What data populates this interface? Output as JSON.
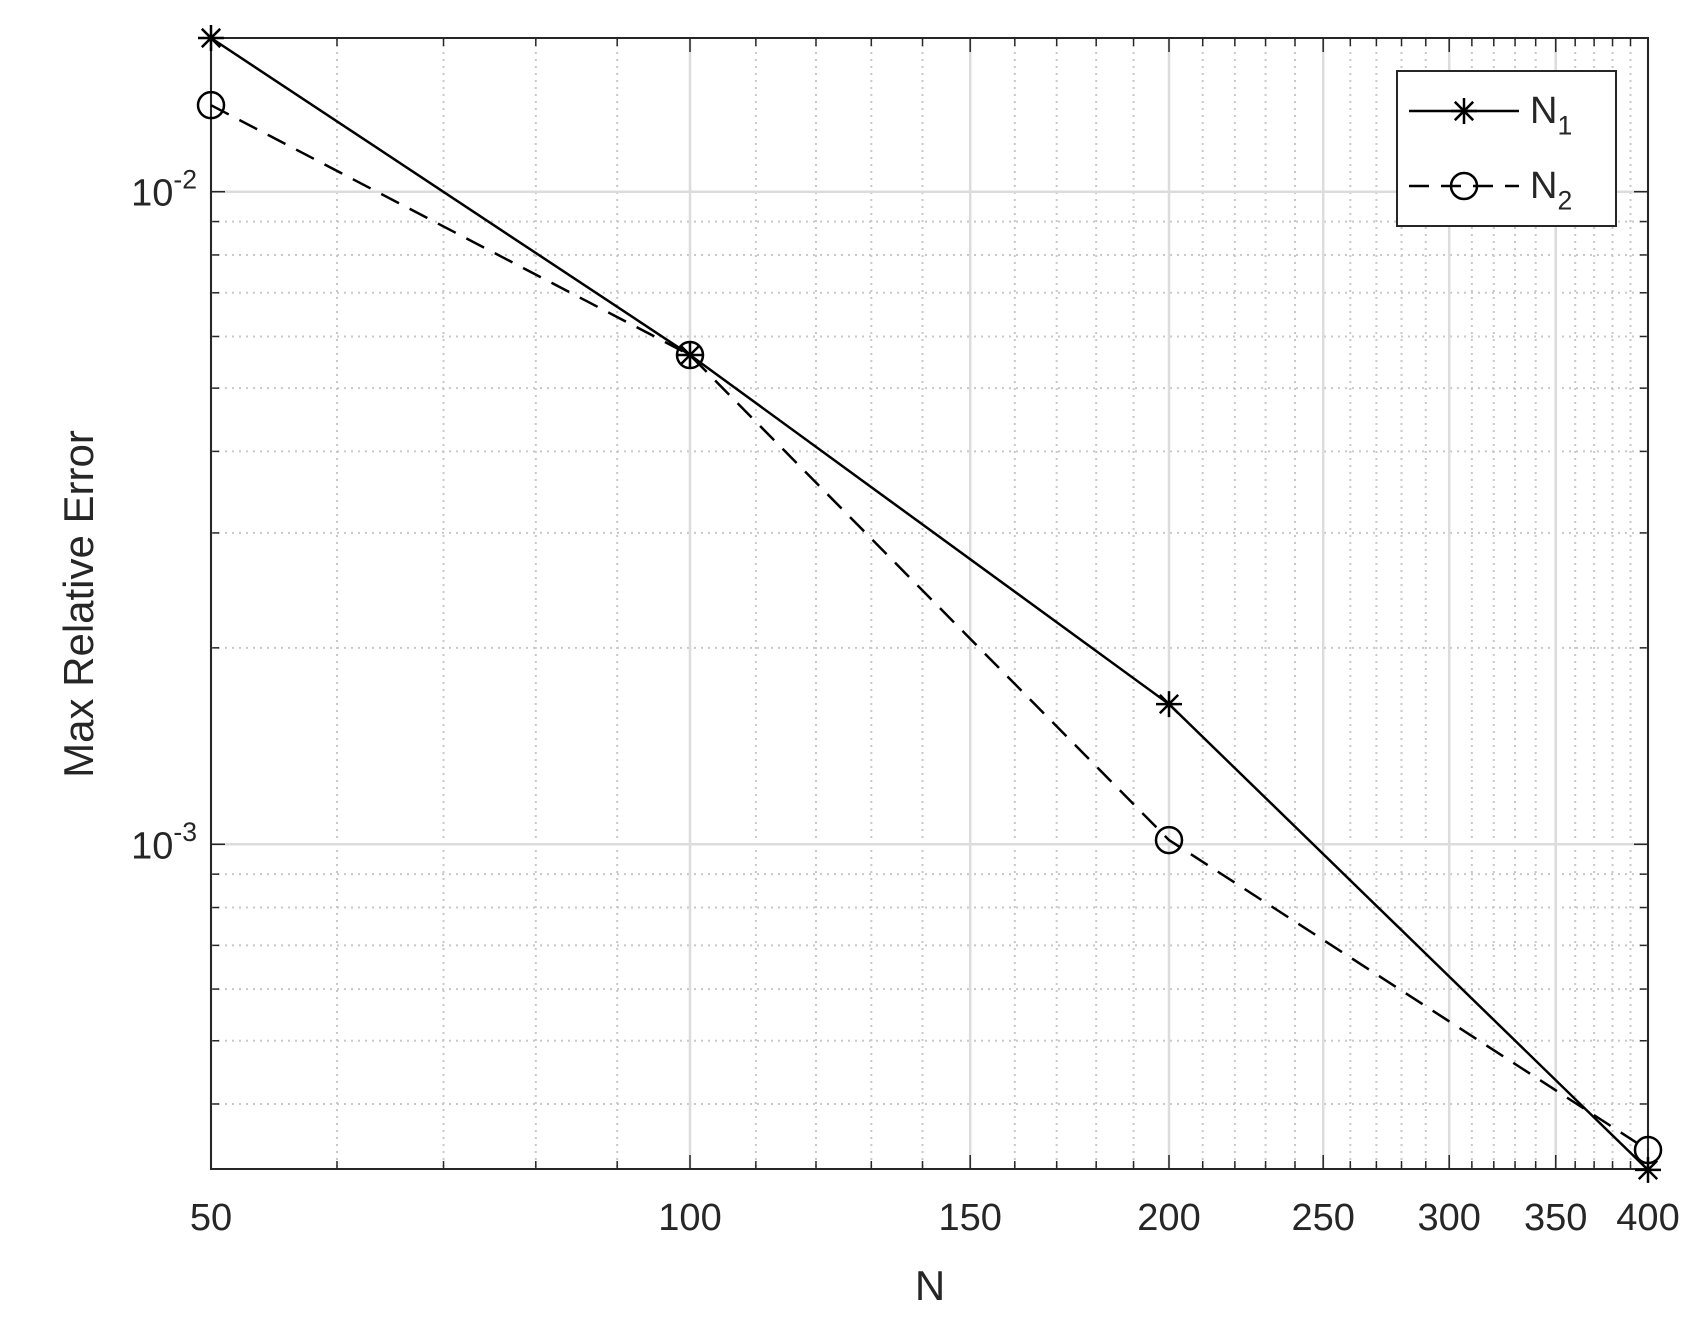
{
  "chart_data": {
    "type": "line",
    "x_label": "N",
    "y_label": "Max Relative Error",
    "x": [
      50,
      100,
      200,
      400
    ],
    "series": [
      {
        "name": "N_1",
        "color": "#000000",
        "line_style": "solid",
        "marker": "asterisk",
        "values": [
          0.0172,
          0.00562,
          0.00164,
          0.000317
        ]
      },
      {
        "name": "N_2",
        "color": "#000000",
        "line_style": "dashed",
        "marker": "circle",
        "values": [
          0.01357,
          0.00562,
          0.001015,
          0.00034
        ]
      }
    ],
    "x_scale": "log",
    "y_scale": "log",
    "xlim": [
      50,
      400
    ],
    "ylim": [
      0.000318,
      0.0172
    ],
    "xticks": [
      50,
      100,
      150,
      200,
      250,
      300,
      350,
      400
    ],
    "yticks": [
      {
        "value": 0.001,
        "label": "10^-3"
      },
      {
        "value": 0.01,
        "label": "10^-2"
      }
    ],
    "grid": true,
    "minor_grid": true,
    "legend_loc": "northeast"
  }
}
